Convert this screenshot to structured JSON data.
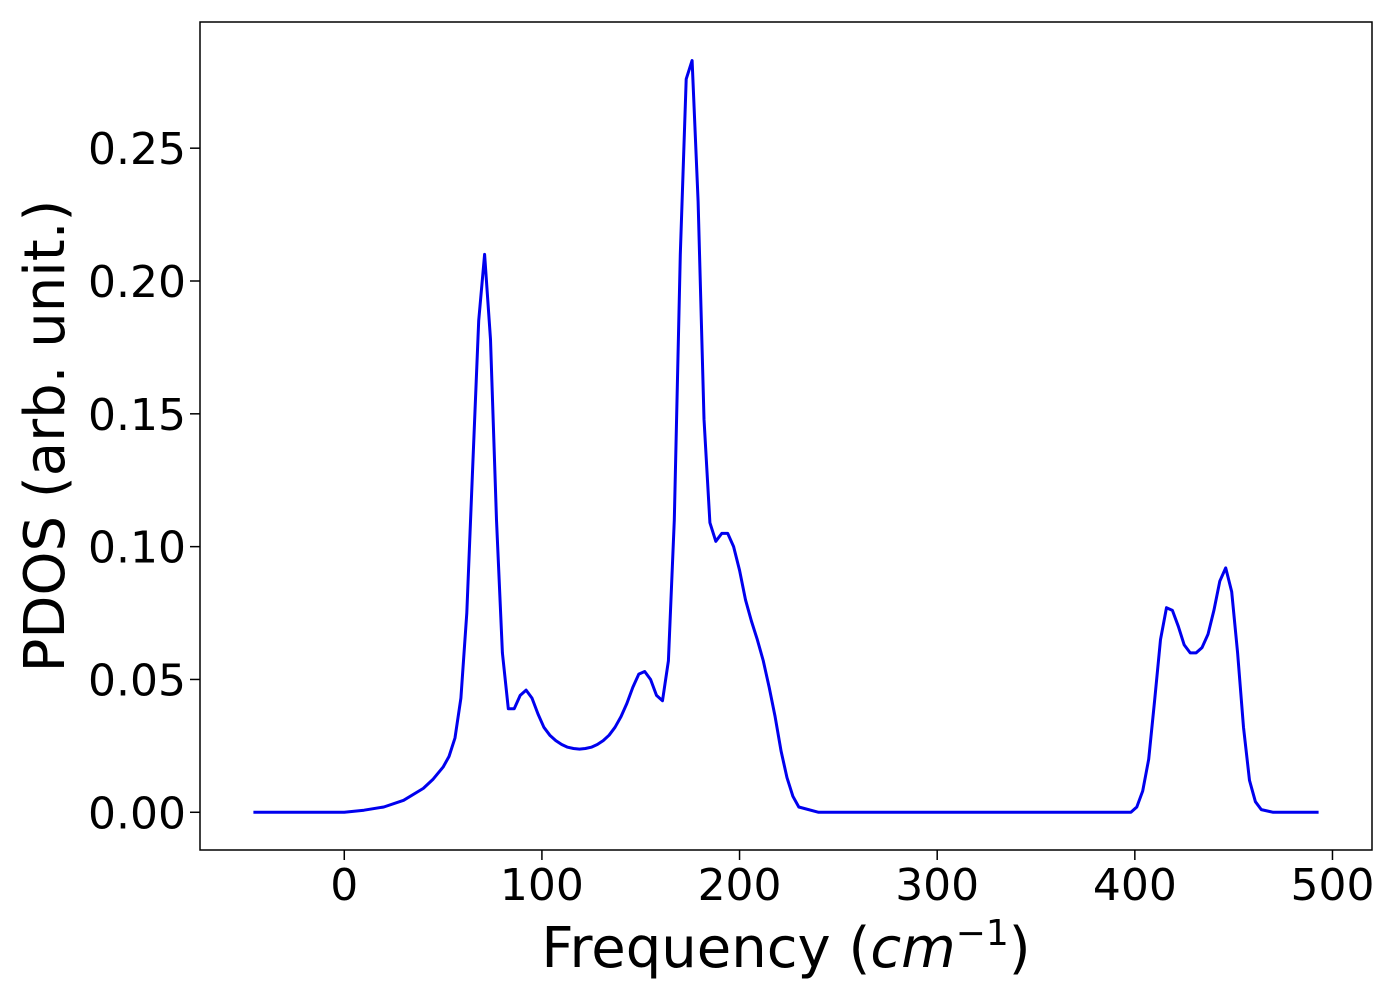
{
  "chart_data": {
    "type": "line",
    "title": "",
    "xlabel": "Frequency (",
    "xlabel_math": "cm",
    "xlabel_sup": "−1",
    "xlabel_close": ")",
    "ylabel": "PDOS (arb. unit.)",
    "xlim": [
      -73,
      520
    ],
    "ylim": [
      -0.0142,
      0.2975
    ],
    "xticks": [
      0,
      100,
      200,
      300,
      400,
      500
    ],
    "xtick_labels": [
      "0",
      "100",
      "200",
      "300",
      "400",
      "500"
    ],
    "yticks": [
      0,
      0.05,
      0.1,
      0.15,
      0.2,
      0.25
    ],
    "ytick_labels": [
      "0.00",
      "0.05",
      "0.10",
      "0.15",
      "0.20",
      "0.25"
    ],
    "grid": false,
    "legend": "none",
    "series": [
      {
        "color": "#0000ee",
        "x": [
          -46,
          -20,
          0,
          10,
          20,
          30,
          40,
          45,
          50,
          53,
          56,
          59,
          62,
          65,
          68,
          71,
          74,
          77,
          80,
          83,
          86,
          89,
          92,
          95,
          98,
          101,
          104,
          107,
          110,
          113,
          116,
          119,
          122,
          125,
          128,
          131,
          134,
          137,
          140,
          143,
          146,
          149,
          152,
          155,
          158,
          161,
          164,
          167,
          170,
          173,
          176,
          179,
          182,
          185,
          188,
          191,
          194,
          197,
          200,
          203,
          206,
          209,
          212,
          215,
          218,
          221,
          224,
          227,
          230,
          240,
          300,
          390,
          398,
          401,
          404,
          407,
          410,
          413,
          416,
          419,
          422,
          425,
          428,
          431,
          434,
          437,
          440,
          443,
          446,
          449,
          452,
          455,
          458,
          461,
          464,
          470,
          493
        ],
        "y": [
          0.0,
          0.0,
          0.0,
          0.0008,
          0.002,
          0.0045,
          0.009,
          0.0125,
          0.017,
          0.021,
          0.028,
          0.043,
          0.075,
          0.13,
          0.185,
          0.21,
          0.178,
          0.11,
          0.06,
          0.039,
          0.039,
          0.044,
          0.046,
          0.043,
          0.037,
          0.032,
          0.029,
          0.027,
          0.0255,
          0.0245,
          0.024,
          0.0238,
          0.024,
          0.0245,
          0.0255,
          0.027,
          0.029,
          0.032,
          0.036,
          0.041,
          0.047,
          0.052,
          0.053,
          0.05,
          0.044,
          0.042,
          0.057,
          0.11,
          0.21,
          0.276,
          0.283,
          0.23,
          0.148,
          0.109,
          0.102,
          0.105,
          0.105,
          0.1,
          0.091,
          0.08,
          0.072,
          0.065,
          0.057,
          0.047,
          0.036,
          0.023,
          0.013,
          0.006,
          0.002,
          0.0,
          0.0,
          0.0,
          0.0,
          0.002,
          0.008,
          0.02,
          0.042,
          0.065,
          0.077,
          0.076,
          0.07,
          0.063,
          0.06,
          0.06,
          0.062,
          0.067,
          0.076,
          0.087,
          0.092,
          0.083,
          0.06,
          0.032,
          0.012,
          0.004,
          0.001,
          0.0,
          0.0
        ]
      }
    ]
  }
}
